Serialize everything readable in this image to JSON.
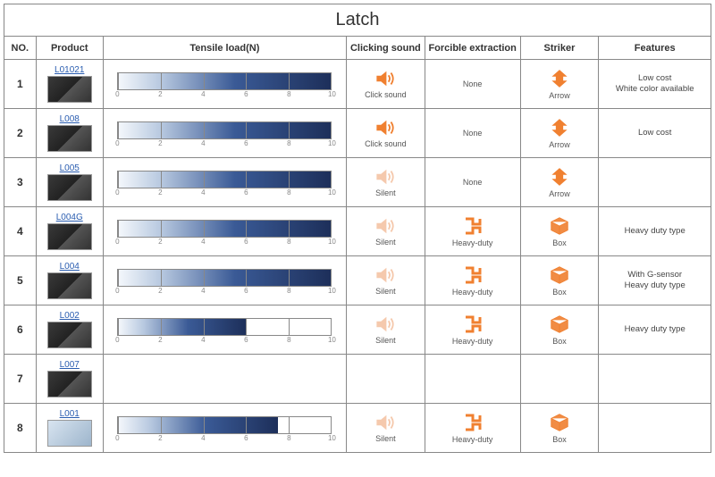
{
  "title": "Latch",
  "columns": {
    "no": "NO.",
    "product": "Product",
    "tensile": "Tensile load(N)",
    "click": "Clicking sound",
    "force": "Forcible extraction",
    "striker": "Striker",
    "features": "Features"
  },
  "gauge": {
    "min": 0,
    "max": 10,
    "step": 2,
    "ticks": [
      0,
      2,
      4,
      6,
      8,
      10
    ],
    "bar_gradient": [
      "#f5f8fc",
      "#b8c9e0",
      "#3a5a96",
      "#1d2f5a"
    ],
    "border_color": "#888888"
  },
  "icon_colors": {
    "click_sound": "#f08030",
    "silent": "#f5c9ad",
    "forcible": "#f08030",
    "striker": "#f08030"
  },
  "labels": {
    "click_sound": "Click sound",
    "silent": "Silent",
    "none": "None",
    "heavy_duty": "Heavy-duty",
    "arrow": "Arrow",
    "box": "Box"
  },
  "rows": [
    {
      "no": "1",
      "product": "L01021",
      "show_gauge": true,
      "tensile_value": 10,
      "click_type": "click_sound",
      "force_type": "none",
      "striker_type": "arrow",
      "features": "Low cost\nWhite color available",
      "img_variant": "dark"
    },
    {
      "no": "2",
      "product": "L008",
      "show_gauge": true,
      "tensile_value": 10,
      "click_type": "click_sound",
      "force_type": "none",
      "striker_type": "arrow",
      "features": "Low cost",
      "img_variant": "dark"
    },
    {
      "no": "3",
      "product": "L005",
      "show_gauge": true,
      "tensile_value": 10,
      "click_type": "silent",
      "force_type": "none",
      "striker_type": "arrow",
      "features": "",
      "img_variant": "dark"
    },
    {
      "no": "4",
      "product": "L004G",
      "show_gauge": true,
      "tensile_value": 10,
      "click_type": "silent",
      "force_type": "heavy_duty",
      "striker_type": "box",
      "features": "Heavy duty type",
      "img_variant": "dark"
    },
    {
      "no": "5",
      "product": "L004",
      "show_gauge": true,
      "tensile_value": 10,
      "click_type": "silent",
      "force_type": "heavy_duty",
      "striker_type": "box",
      "features": "With G-sensor\nHeavy duty type",
      "img_variant": "dark"
    },
    {
      "no": "6",
      "product": "L002",
      "show_gauge": true,
      "tensile_value": 6,
      "click_type": "silent",
      "force_type": "heavy_duty",
      "striker_type": "box",
      "features": "Heavy duty type",
      "img_variant": "dark"
    },
    {
      "no": "7",
      "product": "L007",
      "show_gauge": false,
      "tensile_value": 0,
      "click_type": "",
      "force_type": "",
      "striker_type": "",
      "features": "",
      "img_variant": "dark"
    },
    {
      "no": "8",
      "product": "L001",
      "show_gauge": true,
      "tensile_value": 7.5,
      "click_type": "silent",
      "force_type": "heavy_duty",
      "striker_type": "box",
      "features": "",
      "img_variant": "light"
    }
  ]
}
